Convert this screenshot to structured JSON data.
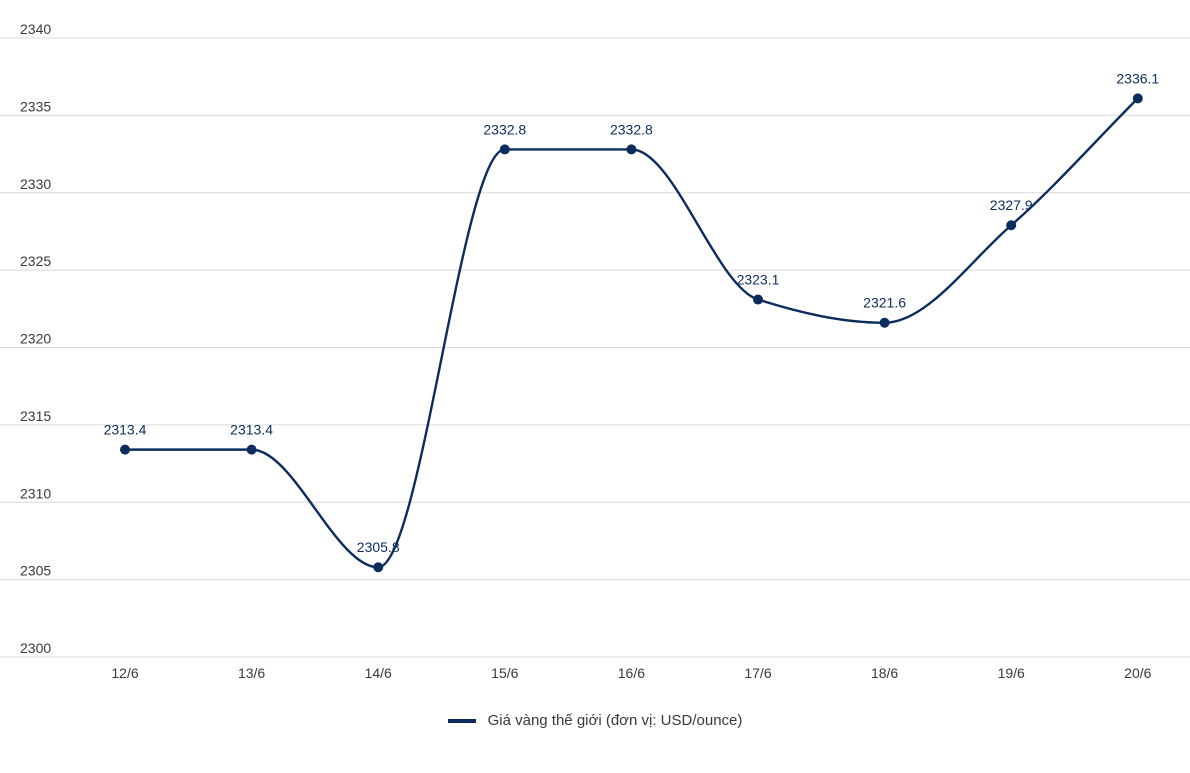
{
  "chart_data": {
    "type": "line",
    "title": "",
    "xlabel": "",
    "ylabel": "",
    "categories": [
      "12/6",
      "13/6",
      "14/6",
      "15/6",
      "16/6",
      "17/6",
      "18/6",
      "19/6",
      "20/6"
    ],
    "series": [
      {
        "name": "Giá vàng thế giới (đơn vị: USD/ounce)",
        "values": [
          2313.4,
          2313.4,
          2305.8,
          2332.8,
          2332.8,
          2323.1,
          2321.6,
          2327.9,
          2336.1
        ],
        "labels": [
          "2313.4",
          "2313.4",
          "2305.8",
          "2332.8",
          "2332.8",
          "2323.1",
          "2321.6",
          "2327.9",
          "2336.1"
        ],
        "color": "#0d2c5e"
      }
    ],
    "ylim": [
      2300,
      2340
    ],
    "yticks": [
      "2300",
      "2305",
      "2310",
      "2315",
      "2320",
      "2325",
      "2330",
      "2335",
      "2340"
    ],
    "grid": true,
    "legend_position": "bottom-center"
  }
}
